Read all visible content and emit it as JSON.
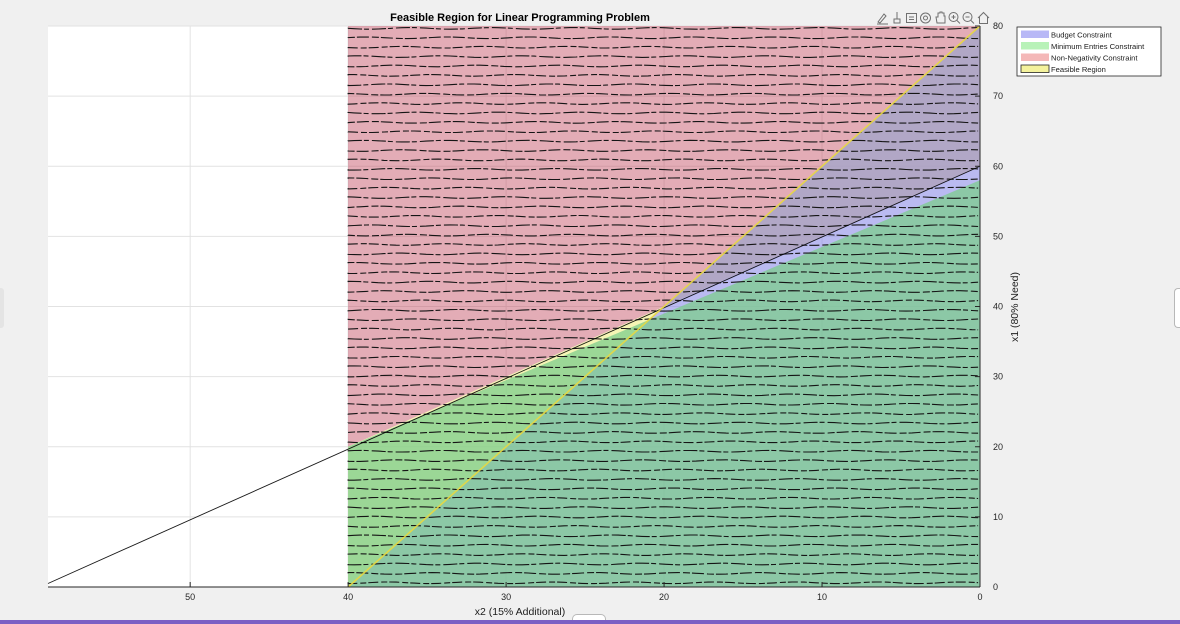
{
  "window": {
    "accent_color": "#7b5fc4",
    "background": "#f0f0f0"
  },
  "toolbar": {
    "icons": [
      "brush-icon",
      "data-tip-icon",
      "export-icon",
      "rotate-3d-icon",
      "pan-hand-icon",
      "zoom-in-icon",
      "zoom-out-icon",
      "home-icon"
    ]
  },
  "chart_data": {
    "type": "area",
    "title": "Feasible Region for Linear Programming Problem",
    "xlabel": "x2 (15% Additional)",
    "ylabel": "x1 (80% Need)",
    "xlim": [
      59,
      0
    ],
    "ylim": [
      0,
      80
    ],
    "x_reversed": true,
    "y_axis_location": "right",
    "xticks": [
      50,
      40,
      30,
      20,
      10,
      0
    ],
    "yticks": [
      0,
      10,
      20,
      30,
      40,
      50,
      60,
      70,
      80
    ],
    "grid": true,
    "legend_position": "top-right-outside",
    "legend": [
      {
        "label": "Budget Constraint",
        "color": "#b8b8f6"
      },
      {
        "label": "Minimum Entries Constraint",
        "color": "#b8f2b8"
      },
      {
        "label": "Non-Negativity Constraint",
        "color": "#f4b8b8"
      },
      {
        "label": "Feasible Region",
        "color": "#f4f29c"
      }
    ],
    "regions": [
      {
        "name": "Non-Negativity Constraint",
        "color": "#c0485e",
        "opacity": 0.45,
        "points": [
          [
            40,
            20
          ],
          [
            40,
            80
          ],
          [
            0,
            80
          ],
          [
            0,
            60
          ]
        ]
      },
      {
        "name": "Feasible Region",
        "color": "#ecec78",
        "opacity": 0.55,
        "points": [
          [
            40,
            0
          ],
          [
            0,
            80
          ],
          [
            0,
            60
          ],
          [
            40,
            20
          ]
        ]
      },
      {
        "name": "Budget Constraint",
        "color": "#8c8ce8",
        "opacity": 0.6,
        "points": [
          [
            40,
            0
          ],
          [
            0,
            80
          ],
          [
            0,
            0
          ]
        ]
      },
      {
        "name": "Minimum Entries Constraint",
        "color": "#7ccc8c",
        "opacity": 0.75,
        "points": [
          [
            40,
            0
          ],
          [
            40,
            20
          ],
          [
            0,
            58
          ],
          [
            0,
            0
          ]
        ]
      }
    ],
    "lines": [
      {
        "name": "constraint boundary",
        "color": "#000000",
        "points": [
          [
            59,
            0.5
          ],
          [
            0,
            60
          ]
        ]
      },
      {
        "name": "budget boundary",
        "color": "#e8d840",
        "points": [
          [
            40,
            0
          ],
          [
            0,
            80
          ]
        ]
      }
    ],
    "hatch": {
      "x_from": 40,
      "x_to": 0,
      "y_from": 0,
      "y_to": 80,
      "step": 1.34
    }
  }
}
